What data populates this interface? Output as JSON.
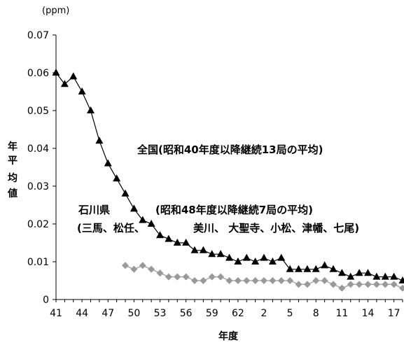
{
  "chart_data": {
    "type": "line",
    "unit_label": "(ppm)",
    "xlabel": "年度",
    "ylabel": [
      "年",
      "平",
      "均",
      "値"
    ],
    "ylim": [
      0,
      0.07
    ],
    "yticks": [
      "0",
      "0.01",
      "0.02",
      "0.03",
      "0.04",
      "0.05",
      "0.06",
      "0.07"
    ],
    "x": [
      41,
      42,
      43,
      44,
      45,
      46,
      47,
      48,
      49,
      50,
      51,
      52,
      53,
      54,
      55,
      56,
      57,
      58,
      59,
      60,
      61,
      62,
      63,
      1,
      2,
      3,
      4,
      5,
      6,
      7,
      8,
      9,
      10,
      11,
      12,
      13,
      14,
      15,
      16,
      17,
      18
    ],
    "xticks": [
      "41",
      "44",
      "47",
      "50",
      "53",
      "56",
      "59",
      "62",
      "2",
      "5",
      "8",
      "11",
      "14",
      "17"
    ],
    "series": [
      {
        "name": "全国(昭和40年度以降継続13局の平均)",
        "marker": "triangle",
        "color": "#000000",
        "values": [
          0.06,
          0.057,
          0.059,
          0.055,
          0.05,
          0.042,
          0.036,
          0.032,
          0.028,
          0.024,
          0.021,
          0.02,
          0.017,
          0.016,
          0.015,
          0.015,
          0.013,
          0.013,
          0.012,
          0.012,
          0.011,
          0.01,
          0.011,
          0.01,
          0.011,
          0.01,
          0.011,
          0.008,
          0.008,
          0.008,
          0.008,
          0.009,
          0.008,
          0.007,
          0.006,
          0.007,
          0.007,
          0.006,
          0.006,
          0.006,
          0.005
        ]
      },
      {
        "name": "石川県 (昭和48年度以降継続7局の平均) (三馬、松任、美川、大聖寺、小松、津幡、七尾)",
        "marker": "diamond",
        "color": "#999999",
        "values": [
          null,
          null,
          null,
          null,
          null,
          null,
          null,
          null,
          0.009,
          0.008,
          0.009,
          0.008,
          0.007,
          0.006,
          0.006,
          0.006,
          0.005,
          0.005,
          0.006,
          0.006,
          0.005,
          0.005,
          0.005,
          0.005,
          0.005,
          0.005,
          0.005,
          0.005,
          0.004,
          0.004,
          0.005,
          0.005,
          0.004,
          0.003,
          0.004,
          0.004,
          0.004,
          0.004,
          0.004,
          0.004,
          0.003
        ]
      }
    ],
    "annotations": {
      "national": "全国(昭和40年度以降継続13局の平均)",
      "ishikawa_1": "石川県",
      "ishikawa_2": "(昭和48年度以降継続7局の平均)",
      "ishikawa_3a": "(三馬、松任、",
      "ishikawa_3b": "美川、 大聖寺、小松、津幡、七尾)"
    }
  }
}
